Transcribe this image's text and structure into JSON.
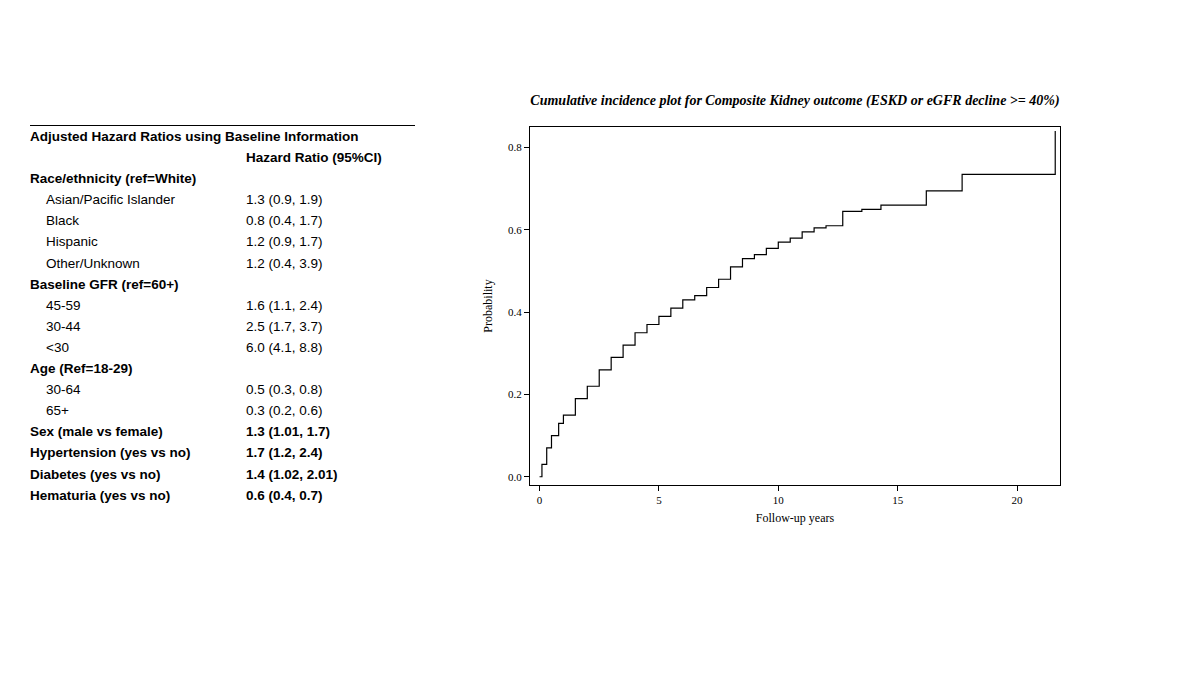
{
  "table": {
    "title": "Adjusted Hazard Ratios using Baseline Information",
    "column_header": "Hazard Ratio (95%CI)",
    "sections": [
      {
        "heading": "Race/ethnicity (ref=White)",
        "rows": [
          [
            "Asian/Pacific Islander",
            "1.3 (0.9, 1.9)"
          ],
          [
            "Black",
            "0.8 (0.4, 1.7)"
          ],
          [
            "Hispanic",
            "1.2 (0.9, 1.7)"
          ],
          [
            "Other/Unknown",
            "1.2 (0.4, 3.9)"
          ]
        ]
      },
      {
        "heading": "Baseline GFR (ref=60+)",
        "rows": [
          [
            "45-59",
            "1.6 (1.1, 2.4)"
          ],
          [
            "30-44",
            "2.5 (1.7, 3.7)"
          ],
          [
            "<30",
            "6.0 (4.1, 8.8)"
          ]
        ]
      },
      {
        "heading": "Age (Ref=18-29)",
        "rows": [
          [
            "30-64",
            "0.5 (0.3, 0.8)"
          ],
          [
            "65+",
            "0.3 (0.2, 0.6)"
          ]
        ]
      },
      {
        "heading": "Sex (male vs female)",
        "value": "1.3 (1.01, 1.7)"
      },
      {
        "heading": "Hypertension (yes vs no)",
        "value": "1.7 (1.2, 2.4)"
      },
      {
        "heading": "Diabetes (yes vs no)",
        "value": "1.4 (1.02, 2.01)"
      },
      {
        "heading": "Hematuria (yes vs no)",
        "value": "0.6 (0.4, 0.7)"
      }
    ]
  },
  "chart_data": {
    "type": "line",
    "title": "Cumulative incidence plot for Composite Kidney outcome (ESKD or eGFR decline >= 40%)",
    "x_label": "Follow-up years",
    "y_label": "Probability",
    "line_style": "step",
    "color": "#000000",
    "grid": false,
    "x": [
      0,
      0.1,
      0.3,
      0.5,
      0.8,
      1.0,
      1.5,
      2,
      2.5,
      3,
      3.5,
      4,
      4.5,
      5,
      5.5,
      6,
      6.5,
      7,
      7.5,
      8,
      8.5,
      9,
      9.5,
      10,
      10.5,
      11,
      11.5,
      12,
      12.7,
      13.5,
      14.3,
      16.2,
      17.7,
      21.6
    ],
    "values": [
      0,
      0.03,
      0.07,
      0.1,
      0.13,
      0.15,
      0.19,
      0.22,
      0.26,
      0.29,
      0.32,
      0.35,
      0.37,
      0.39,
      0.41,
      0.43,
      0.44,
      0.46,
      0.48,
      0.51,
      0.53,
      0.54,
      0.555,
      0.57,
      0.58,
      0.595,
      0.605,
      0.61,
      0.645,
      0.65,
      0.66,
      0.695,
      0.735,
      0.84
    ],
    "xlim": [
      -0.4,
      21.8
    ],
    "ylim": [
      -0.02,
      0.85
    ],
    "xticks": [
      0,
      5,
      10,
      15,
      20
    ],
    "yticks": [
      {
        "value": 0,
        "label": "0.0"
      },
      {
        "value": 0.2,
        "label": "0.2"
      },
      {
        "value": 0.4,
        "label": "0.4"
      },
      {
        "value": 0.6,
        "label": "0.6"
      },
      {
        "value": 0.8,
        "label": "0.8"
      }
    ]
  }
}
